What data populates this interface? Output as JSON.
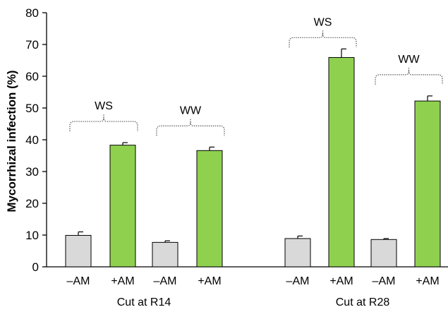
{
  "chart_data": {
    "type": "bar",
    "ylabel": "Mycorrhizal infection (%)",
    "ylim": [
      0,
      80
    ],
    "yticks": [
      0,
      10,
      20,
      30,
      40,
      50,
      60,
      70,
      80
    ],
    "grid": false,
    "colors": {
      "minus_am": "#d9d9d9",
      "plus_am": "#8fd14f"
    },
    "groups": [
      {
        "label": "Cut at R14",
        "subgroups": [
          {
            "label": "WS",
            "bars": [
              {
                "category": "–AM",
                "value": 9.9,
                "error": 1.1
              },
              {
                "category": "+AM",
                "value": 38.3,
                "error": 0.8
              }
            ]
          },
          {
            "label": "WW",
            "bars": [
              {
                "category": "–AM",
                "value": 7.7,
                "error": 0.5
              },
              {
                "category": "+AM",
                "value": 36.6,
                "error": 1.1
              }
            ]
          }
        ]
      },
      {
        "label": "Cut at R28",
        "subgroups": [
          {
            "label": "WS",
            "bars": [
              {
                "category": "–AM",
                "value": 8.9,
                "error": 0.8
              },
              {
                "category": "+AM",
                "value": 65.9,
                "error": 2.7
              }
            ]
          },
          {
            "label": "WW",
            "bars": [
              {
                "category": "–AM",
                "value": 8.6,
                "error": 0.3
              },
              {
                "category": "+AM",
                "value": 52.2,
                "error": 1.6
              }
            ]
          }
        ]
      }
    ]
  }
}
